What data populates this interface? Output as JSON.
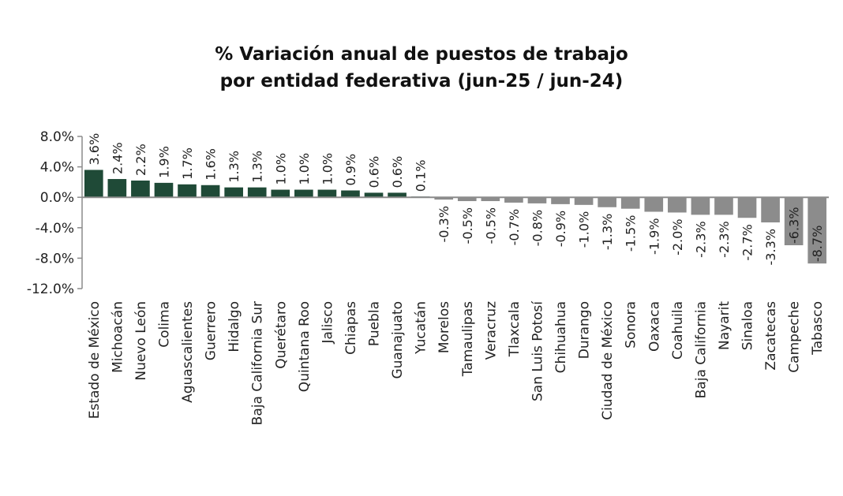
{
  "chart_data": {
    "type": "bar",
    "title_lines": [
      "% Variación anual de puestos de trabajo",
      "por entidad federativa (jun-25 / jun-24)"
    ],
    "xlabel": "",
    "ylabel": "",
    "ylim": [
      -12,
      8
    ],
    "yticks": [
      8,
      4,
      0,
      -4,
      -8,
      -12
    ],
    "ytick_labels": [
      "8.0%",
      "4.0%",
      "0.0%",
      "-4.0%",
      "-8.0%",
      "-12.0%"
    ],
    "grid": false,
    "legend": "none",
    "categories": [
      "Estado de México",
      "Michoacán",
      "Nuevo León",
      "Colima",
      "Aguascalientes",
      "Guerrero",
      "Hidalgo",
      "Baja California Sur",
      "Querétaro",
      "Quintana Roo",
      "Jalisco",
      "Chiapas",
      "Puebla",
      "Guanajuato",
      "Yucatán",
      "Morelos",
      "Tamaulipas",
      "Veracruz",
      "Tlaxcala",
      "San Luis Potosí",
      "Chihuahua",
      "Durango",
      "Ciudad de México",
      "Sonora",
      "Oaxaca",
      "Coahuila",
      "Baja California",
      "Nayarit",
      "Sinaloa",
      "Zacatecas",
      "Campeche",
      "Tabasco"
    ],
    "values": [
      3.6,
      2.4,
      2.2,
      1.9,
      1.7,
      1.6,
      1.3,
      1.3,
      1.0,
      1.0,
      1.0,
      0.9,
      0.6,
      0.6,
      0.1,
      -0.3,
      -0.5,
      -0.5,
      -0.7,
      -0.8,
      -0.9,
      -1.0,
      -1.3,
      -1.5,
      -1.9,
      -2.0,
      -2.3,
      -2.3,
      -2.7,
      -3.3,
      -6.3,
      -8.7
    ],
    "value_labels": [
      "3.6%",
      "2.4%",
      "2.2%",
      "1.9%",
      "1.7%",
      "1.6%",
      "1.3%",
      "1.3%",
      "1.0%",
      "1.0%",
      "1.0%",
      "0.9%",
      "0.6%",
      "0.6%",
      "0.1%",
      "-0.3%",
      "-0.5%",
      "-0.5%",
      "-0.7%",
      "-0.8%",
      "-0.9%",
      "-1.0%",
      "-1.3%",
      "-1.5%",
      "-1.9%",
      "-2.0%",
      "-2.3%",
      "-2.3%",
      "-2.7%",
      "-3.3%",
      "-6.3%",
      "-8.7%"
    ],
    "colors": {
      "positive": "#1f4a37",
      "negative": "#8c8c8c",
      "axis": "#8c8c8c",
      "text": "#222222"
    }
  }
}
